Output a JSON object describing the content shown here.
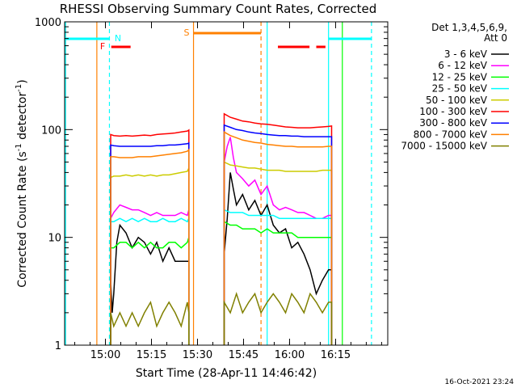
{
  "chart_data": {
    "type": "line",
    "title": "RHESSI Observing Summary Count Rates, Corrected",
    "xlabel": "Start Time (28-Apr-11 14:46:42)",
    "ylabel": "Corrected Count Rate (s⁻¹ detector⁻¹)",
    "ylabel_plain": "Corrected Count Rate (s",
    "ylabel_sup1": "-1",
    "ylabel_mid": " detector",
    "ylabel_sup2": "-1",
    "ylabel_end": ")",
    "y_scale": "log",
    "ylim": [
      1,
      1000
    ],
    "xlim": [
      "14:46:42",
      "16:32:00"
    ],
    "x_ticks": [
      "15:00",
      "15:15",
      "15:30",
      "15:45",
      "16:00",
      "16:15"
    ],
    "y_ticks": [
      "1",
      "10",
      "100",
      "1000"
    ],
    "timestamp": "16-Oct-2021 23:24",
    "legend_header": [
      "Det 1,3,4,5,6,9,",
      "Att 0"
    ],
    "legend_position": "right",
    "series": [
      {
        "name": "3 - 6 keV",
        "color": "#000000",
        "x_min": [
          15,
          15.5,
          16,
          17,
          18,
          20,
          22,
          24,
          26,
          28,
          30,
          32,
          34,
          36,
          38,
          40,
          40.5,
          52,
          53,
          54,
          55,
          56,
          58,
          60,
          62,
          64,
          66,
          68,
          70,
          72,
          74,
          76,
          78,
          80,
          82,
          84,
          86,
          87
        ],
        "values": [
          4,
          2,
          3,
          9,
          13,
          11,
          8,
          10,
          9,
          7,
          9,
          6,
          8,
          6,
          6,
          6,
          6,
          7,
          15,
          40,
          28,
          20,
          25,
          18,
          22,
          16,
          20,
          13,
          11,
          12,
          8,
          9,
          7,
          5,
          3,
          4,
          5,
          5
        ]
      },
      {
        "name": "6 - 12 keV",
        "color": "#ff00ff",
        "x_min": [
          15,
          16,
          18,
          20,
          22,
          24,
          26,
          28,
          30,
          32,
          34,
          36,
          38,
          40,
          40.5,
          52,
          53,
          54,
          55,
          56,
          58,
          60,
          62,
          64,
          66,
          68,
          70,
          72,
          74,
          76,
          78,
          80,
          82,
          84,
          86,
          87
        ],
        "values": [
          15,
          17,
          20,
          19,
          18,
          18,
          17,
          16,
          17,
          16,
          16,
          16,
          17,
          16,
          18,
          50,
          70,
          85,
          55,
          40,
          35,
          30,
          34,
          25,
          30,
          20,
          18,
          19,
          18,
          17,
          17,
          16,
          15,
          15,
          16,
          16
        ]
      },
      {
        "name": "12 - 25 keV",
        "color": "#00ff00",
        "x_min": [
          15,
          16,
          18,
          20,
          22,
          24,
          26,
          28,
          30,
          32,
          34,
          36,
          38,
          40,
          40.5,
          52,
          54,
          56,
          58,
          60,
          62,
          64,
          66,
          68,
          70,
          72,
          74,
          76,
          78,
          80,
          82,
          84,
          86,
          87
        ],
        "values": [
          8,
          8,
          9,
          9,
          8,
          9,
          8,
          9,
          8,
          8,
          9,
          9,
          8,
          9,
          10,
          14,
          13,
          13,
          12,
          12,
          12,
          11,
          12,
          11,
          11,
          11,
          11,
          10,
          10,
          10,
          10,
          10,
          10,
          10
        ]
      },
      {
        "name": "25 - 50 keV",
        "color": "#00ffff",
        "x_min": [
          15,
          16,
          18,
          20,
          22,
          24,
          26,
          28,
          30,
          32,
          34,
          36,
          38,
          40,
          40.5,
          52,
          54,
          56,
          58,
          60,
          62,
          64,
          66,
          68,
          70,
          72,
          74,
          76,
          78,
          80,
          82,
          84,
          86,
          87
        ],
        "values": [
          14,
          14,
          15,
          14,
          15,
          14,
          15,
          14,
          14,
          15,
          14,
          14,
          15,
          14,
          15,
          18,
          17,
          17,
          17,
          16,
          16,
          16,
          16,
          16,
          15,
          15,
          15,
          15,
          15,
          15,
          15,
          15,
          15,
          15
        ]
      },
      {
        "name": "50 - 100 keV",
        "color": "#cccc00",
        "x_min": [
          15,
          16,
          18,
          20,
          22,
          24,
          26,
          28,
          30,
          32,
          34,
          36,
          38,
          40,
          40.5,
          52,
          54,
          56,
          58,
          60,
          62,
          64,
          66,
          68,
          70,
          72,
          74,
          76,
          78,
          80,
          82,
          84,
          86,
          87
        ],
        "values": [
          36,
          37,
          37,
          38,
          37,
          38,
          37,
          38,
          37,
          38,
          38,
          39,
          40,
          41,
          44,
          50,
          47,
          46,
          45,
          44,
          44,
          43,
          42,
          42,
          42,
          41,
          41,
          41,
          41,
          41,
          41,
          42,
          42,
          42
        ]
      },
      {
        "name": "100 - 300 keV",
        "color": "#ff0000",
        "x_min": [
          15,
          16,
          18,
          20,
          22,
          24,
          26,
          28,
          30,
          32,
          34,
          36,
          38,
          40,
          40.5,
          52,
          54,
          56,
          58,
          60,
          62,
          64,
          66,
          68,
          70,
          72,
          74,
          76,
          78,
          80,
          82,
          84,
          86,
          87
        ],
        "values": [
          90,
          88,
          87,
          88,
          87,
          88,
          89,
          88,
          90,
          91,
          92,
          93,
          95,
          97,
          99,
          140,
          130,
          125,
          120,
          118,
          115,
          113,
          112,
          110,
          108,
          106,
          105,
          104,
          104,
          104,
          105,
          106,
          107,
          108
        ]
      },
      {
        "name": "300 - 800 keV",
        "color": "#0000ff",
        "x_min": [
          15,
          16,
          18,
          20,
          22,
          24,
          26,
          28,
          30,
          32,
          34,
          36,
          38,
          40,
          40.5,
          52,
          54,
          56,
          58,
          60,
          62,
          64,
          66,
          68,
          70,
          72,
          74,
          76,
          78,
          80,
          82,
          84,
          86,
          87
        ],
        "values": [
          72,
          71,
          70,
          70,
          70,
          70,
          70,
          70,
          71,
          71,
          72,
          72,
          73,
          74,
          75,
          110,
          105,
          100,
          98,
          95,
          93,
          92,
          90,
          89,
          88,
          88,
          87,
          87,
          86,
          86,
          86,
          86,
          86,
          86
        ]
      },
      {
        "name": "800 - 7000 keV",
        "color": "#ff8000",
        "x_min": [
          15,
          16,
          18,
          20,
          22,
          24,
          26,
          28,
          30,
          32,
          34,
          36,
          38,
          40,
          40.5,
          52,
          54,
          56,
          58,
          60,
          62,
          64,
          66,
          68,
          70,
          72,
          74,
          76,
          78,
          80,
          82,
          84,
          86,
          87
        ],
        "values": [
          56,
          56,
          55,
          55,
          55,
          56,
          56,
          56,
          57,
          58,
          59,
          60,
          61,
          63,
          65,
          95,
          88,
          84,
          80,
          78,
          76,
          75,
          73,
          72,
          71,
          70,
          70,
          69,
          69,
          69,
          69,
          69,
          70,
          70
        ]
      },
      {
        "name": "7000 - 15000 keV",
        "color": "#808000",
        "x_min": [
          15,
          16,
          18,
          20,
          22,
          24,
          26,
          28,
          30,
          32,
          34,
          36,
          38,
          40,
          40.5,
          52,
          54,
          56,
          58,
          60,
          62,
          64,
          66,
          68,
          70,
          72,
          74,
          76,
          78,
          80,
          82,
          84,
          86,
          87
        ],
        "values": [
          2,
          1.5,
          2,
          1.5,
          2,
          1.5,
          2,
          2.5,
          1.5,
          2,
          2.5,
          2,
          1.5,
          2.5,
          2,
          2.5,
          2,
          3,
          2,
          2.5,
          3,
          2,
          2.5,
          3,
          2.5,
          2,
          3,
          2.5,
          2,
          3,
          2.5,
          2,
          2.5,
          2.5
        ]
      }
    ],
    "annotations": [
      {
        "label": "F",
        "color": "#ff0000"
      },
      {
        "label": "N",
        "color": "#00ffff"
      },
      {
        "label": "S",
        "color": "#ff8000"
      }
    ]
  }
}
